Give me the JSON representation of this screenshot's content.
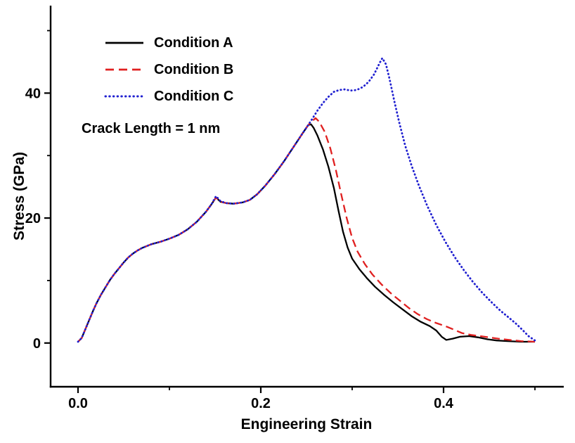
{
  "chart_data": {
    "type": "line",
    "title": "",
    "xlabel": "Engineering Strain",
    "ylabel": "Stress (GPa)",
    "annotation": "Crack Length = 1 nm",
    "xlim": [
      -0.03,
      0.53
    ],
    "ylim": [
      -7,
      54
    ],
    "grid": false,
    "legend_position": "upper-left",
    "axis_color": "#000000",
    "xticks": {
      "major": [
        0.0,
        0.2,
        0.4
      ],
      "minor": [
        0.1,
        0.3,
        0.5
      ],
      "labels": [
        "0.0",
        "0.2",
        "0.4"
      ]
    },
    "yticks": {
      "major": [
        0,
        20,
        40
      ],
      "minor": [
        10,
        30,
        50
      ],
      "labels": [
        "0",
        "20",
        "40"
      ]
    },
    "series": [
      {
        "name": "Condition A",
        "color": "#000000",
        "style": "solid",
        "width": 2.3,
        "points": [
          [
            0.0,
            0.2
          ],
          [
            0.004,
            0.8
          ],
          [
            0.008,
            2.2
          ],
          [
            0.012,
            3.6
          ],
          [
            0.016,
            5.0
          ],
          [
            0.02,
            6.3
          ],
          [
            0.025,
            7.7
          ],
          [
            0.03,
            8.9
          ],
          [
            0.035,
            10.1
          ],
          [
            0.04,
            11.1
          ],
          [
            0.045,
            12.0
          ],
          [
            0.05,
            12.9
          ],
          [
            0.055,
            13.7
          ],
          [
            0.06,
            14.3
          ],
          [
            0.065,
            14.8
          ],
          [
            0.07,
            15.2
          ],
          [
            0.075,
            15.5
          ],
          [
            0.08,
            15.8
          ],
          [
            0.09,
            16.2
          ],
          [
            0.1,
            16.7
          ],
          [
            0.11,
            17.3
          ],
          [
            0.12,
            18.2
          ],
          [
            0.13,
            19.4
          ],
          [
            0.14,
            21.0
          ],
          [
            0.146,
            22.2
          ],
          [
            0.151,
            23.3
          ],
          [
            0.156,
            22.6
          ],
          [
            0.162,
            22.4
          ],
          [
            0.17,
            22.3
          ],
          [
            0.18,
            22.5
          ],
          [
            0.188,
            22.9
          ],
          [
            0.196,
            23.8
          ],
          [
            0.205,
            25.2
          ],
          [
            0.215,
            27.0
          ],
          [
            0.225,
            29.0
          ],
          [
            0.235,
            31.2
          ],
          [
            0.245,
            33.4
          ],
          [
            0.252,
            34.9
          ],
          [
            0.255,
            35.0
          ],
          [
            0.258,
            34.4
          ],
          [
            0.262,
            33.2
          ],
          [
            0.268,
            31.0
          ],
          [
            0.274,
            28.2
          ],
          [
            0.28,
            24.8
          ],
          [
            0.285,
            21.2
          ],
          [
            0.29,
            17.8
          ],
          [
            0.295,
            15.3
          ],
          [
            0.3,
            13.5
          ],
          [
            0.308,
            11.8
          ],
          [
            0.316,
            10.4
          ],
          [
            0.325,
            9.0
          ],
          [
            0.335,
            7.7
          ],
          [
            0.345,
            6.5
          ],
          [
            0.355,
            5.4
          ],
          [
            0.365,
            4.3
          ],
          [
            0.375,
            3.4
          ],
          [
            0.385,
            2.7
          ],
          [
            0.392,
            2.0
          ],
          [
            0.398,
            1.0
          ],
          [
            0.403,
            0.5
          ],
          [
            0.41,
            0.7
          ],
          [
            0.418,
            1.0
          ],
          [
            0.428,
            1.1
          ],
          [
            0.438,
            0.9
          ],
          [
            0.448,
            0.6
          ],
          [
            0.458,
            0.4
          ],
          [
            0.47,
            0.3
          ],
          [
            0.485,
            0.2
          ],
          [
            0.5,
            0.2
          ]
        ]
      },
      {
        "name": "Condition B",
        "color": "#e02020",
        "style": "dashed",
        "width": 2.3,
        "points": [
          [
            0.0,
            0.2
          ],
          [
            0.004,
            0.8
          ],
          [
            0.008,
            2.2
          ],
          [
            0.012,
            3.6
          ],
          [
            0.016,
            5.0
          ],
          [
            0.02,
            6.3
          ],
          [
            0.025,
            7.7
          ],
          [
            0.03,
            8.9
          ],
          [
            0.035,
            10.1
          ],
          [
            0.04,
            11.1
          ],
          [
            0.045,
            12.0
          ],
          [
            0.05,
            12.9
          ],
          [
            0.055,
            13.7
          ],
          [
            0.06,
            14.3
          ],
          [
            0.065,
            14.8
          ],
          [
            0.07,
            15.2
          ],
          [
            0.075,
            15.5
          ],
          [
            0.08,
            15.8
          ],
          [
            0.09,
            16.2
          ],
          [
            0.1,
            16.7
          ],
          [
            0.11,
            17.3
          ],
          [
            0.12,
            18.2
          ],
          [
            0.13,
            19.4
          ],
          [
            0.14,
            21.0
          ],
          [
            0.146,
            22.2
          ],
          [
            0.151,
            23.3
          ],
          [
            0.156,
            22.6
          ],
          [
            0.162,
            22.4
          ],
          [
            0.17,
            22.3
          ],
          [
            0.18,
            22.5
          ],
          [
            0.188,
            22.9
          ],
          [
            0.196,
            23.8
          ],
          [
            0.205,
            25.2
          ],
          [
            0.215,
            27.0
          ],
          [
            0.225,
            29.0
          ],
          [
            0.235,
            31.2
          ],
          [
            0.245,
            33.4
          ],
          [
            0.252,
            34.9
          ],
          [
            0.256,
            35.5
          ],
          [
            0.26,
            36.0
          ],
          [
            0.264,
            35.4
          ],
          [
            0.27,
            33.8
          ],
          [
            0.276,
            31.2
          ],
          [
            0.282,
            27.8
          ],
          [
            0.288,
            23.8
          ],
          [
            0.294,
            20.0
          ],
          [
            0.3,
            16.8
          ],
          [
            0.306,
            14.6
          ],
          [
            0.314,
            12.6
          ],
          [
            0.322,
            11.0
          ],
          [
            0.332,
            9.4
          ],
          [
            0.342,
            8.0
          ],
          [
            0.352,
            6.8
          ],
          [
            0.362,
            5.6
          ],
          [
            0.372,
            4.6
          ],
          [
            0.382,
            3.8
          ],
          [
            0.392,
            3.2
          ],
          [
            0.402,
            2.7
          ],
          [
            0.412,
            2.1
          ],
          [
            0.42,
            1.6
          ],
          [
            0.43,
            1.3
          ],
          [
            0.44,
            1.1
          ],
          [
            0.45,
            0.9
          ],
          [
            0.46,
            0.7
          ],
          [
            0.472,
            0.5
          ],
          [
            0.485,
            0.3
          ],
          [
            0.5,
            0.2
          ]
        ]
      },
      {
        "name": "Condition C",
        "color": "#2020d0",
        "style": "dotted",
        "width": 2.8,
        "points": [
          [
            0.0,
            0.2
          ],
          [
            0.004,
            0.8
          ],
          [
            0.008,
            2.2
          ],
          [
            0.012,
            3.6
          ],
          [
            0.016,
            5.0
          ],
          [
            0.02,
            6.3
          ],
          [
            0.025,
            7.7
          ],
          [
            0.03,
            8.9
          ],
          [
            0.035,
            10.1
          ],
          [
            0.04,
            11.1
          ],
          [
            0.045,
            12.0
          ],
          [
            0.05,
            12.9
          ],
          [
            0.055,
            13.7
          ],
          [
            0.06,
            14.3
          ],
          [
            0.065,
            14.8
          ],
          [
            0.07,
            15.2
          ],
          [
            0.075,
            15.5
          ],
          [
            0.08,
            15.8
          ],
          [
            0.09,
            16.2
          ],
          [
            0.1,
            16.7
          ],
          [
            0.11,
            17.3
          ],
          [
            0.12,
            18.2
          ],
          [
            0.13,
            19.4
          ],
          [
            0.14,
            21.0
          ],
          [
            0.146,
            22.2
          ],
          [
            0.151,
            23.5
          ],
          [
            0.156,
            22.7
          ],
          [
            0.162,
            22.4
          ],
          [
            0.17,
            22.3
          ],
          [
            0.18,
            22.5
          ],
          [
            0.188,
            22.9
          ],
          [
            0.196,
            23.8
          ],
          [
            0.205,
            25.2
          ],
          [
            0.215,
            27.0
          ],
          [
            0.225,
            29.0
          ],
          [
            0.235,
            31.2
          ],
          [
            0.245,
            33.4
          ],
          [
            0.252,
            34.9
          ],
          [
            0.256,
            35.8
          ],
          [
            0.262,
            37.2
          ],
          [
            0.268,
            38.4
          ],
          [
            0.274,
            39.4
          ],
          [
            0.28,
            40.2
          ],
          [
            0.286,
            40.5
          ],
          [
            0.292,
            40.6
          ],
          [
            0.298,
            40.4
          ],
          [
            0.305,
            40.5
          ],
          [
            0.312,
            41.0
          ],
          [
            0.318,
            41.8
          ],
          [
            0.324,
            43.0
          ],
          [
            0.33,
            44.8
          ],
          [
            0.333,
            45.6
          ],
          [
            0.337,
            44.6
          ],
          [
            0.341,
            42.2
          ],
          [
            0.346,
            38.8
          ],
          [
            0.352,
            35.0
          ],
          [
            0.358,
            31.6
          ],
          [
            0.365,
            28.4
          ],
          [
            0.373,
            25.2
          ],
          [
            0.382,
            22.0
          ],
          [
            0.392,
            18.9
          ],
          [
            0.402,
            16.2
          ],
          [
            0.412,
            13.8
          ],
          [
            0.422,
            11.7
          ],
          [
            0.432,
            9.8
          ],
          [
            0.442,
            8.1
          ],
          [
            0.452,
            6.6
          ],
          [
            0.462,
            5.2
          ],
          [
            0.472,
            4.0
          ],
          [
            0.48,
            3.0
          ],
          [
            0.487,
            2.0
          ],
          [
            0.493,
            1.1
          ],
          [
            0.5,
            0.4
          ]
        ]
      }
    ]
  }
}
